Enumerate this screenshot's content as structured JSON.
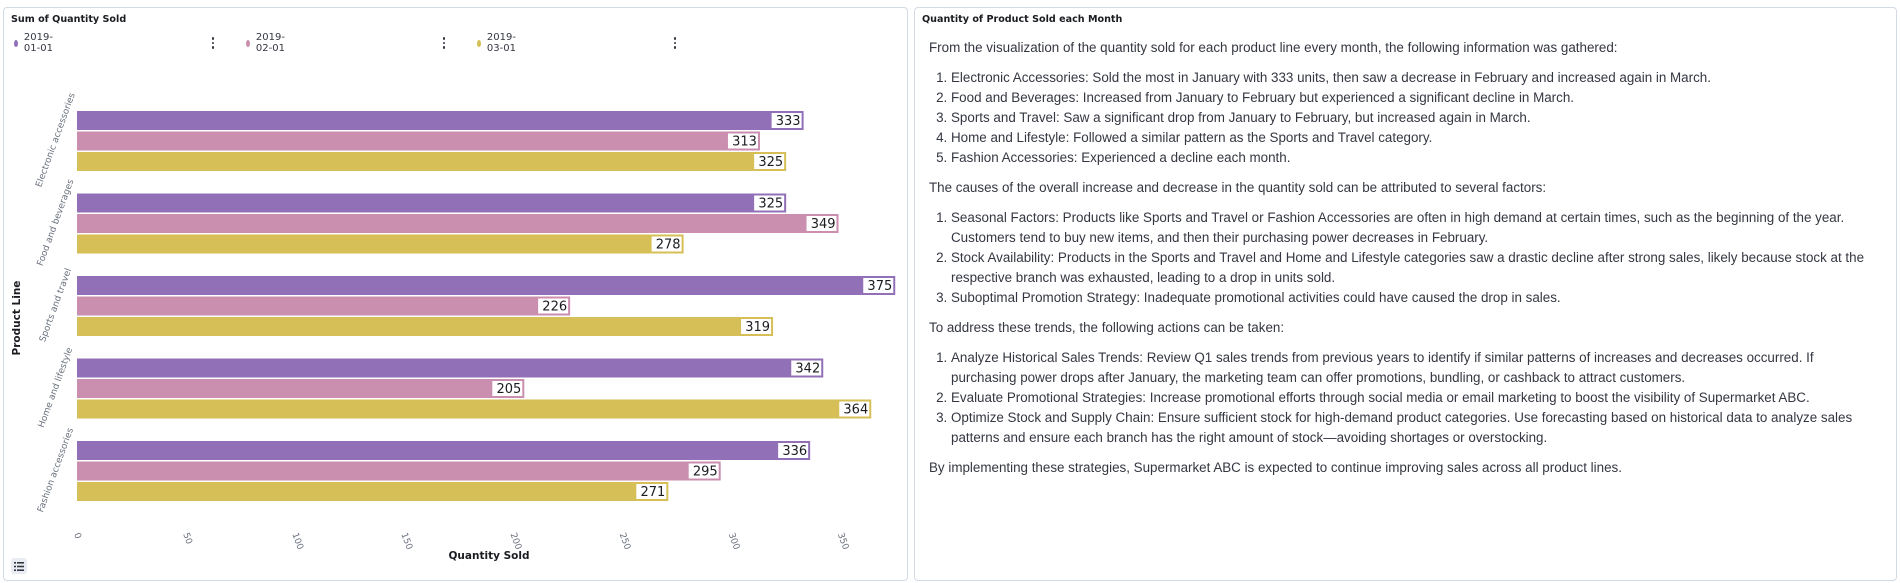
{
  "chart_panel": {
    "title": "Sum of Quantity Sold",
    "legend": [
      {
        "label": "2019-01-01",
        "color": "#9170b8"
      },
      {
        "label": "2019-02-01",
        "color": "#ca8eae"
      },
      {
        "label": "2019-03-01",
        "color": "#d6bf57"
      }
    ]
  },
  "chart_data": {
    "type": "bar",
    "orientation": "horizontal",
    "title": "",
    "ylabel": "Product Line",
    "xlabel": "Quantity Sold",
    "categories": [
      "Electronic accessories",
      "Food and beverages",
      "Sports and travel",
      "Home and lifestyle",
      "Fashion accessories"
    ],
    "series": [
      {
        "name": "2019-01-01",
        "color": "#9170b8",
        "values": [
          333,
          325,
          375,
          342,
          336
        ]
      },
      {
        "name": "2019-02-01",
        "color": "#ca8eae",
        "values": [
          313,
          349,
          226,
          205,
          295
        ]
      },
      {
        "name": "2019-03-01",
        "color": "#d6bf57",
        "values": [
          325,
          278,
          319,
          364,
          271
        ]
      }
    ],
    "xticks": [
      "0",
      "50",
      "100",
      "150",
      "200",
      "250",
      "300",
      "350"
    ],
    "xlim": [
      0,
      375
    ],
    "grid": false,
    "legend_position": "top"
  },
  "text_panel": {
    "title": "Quantity of Product Sold each Month",
    "intro": "From the visualization of the quantity sold for each product line every month, the following information was gathered:",
    "observations": [
      "Electronic Accessories: Sold the most in January with 333 units, then saw a decrease in February and increased again in March.",
      "Food and Beverages: Increased from January to February but experienced a significant decline in March.",
      "Sports and Travel: Saw a significant drop from January to February, but increased again in March.",
      "Home and Lifestyle: Followed a similar pattern as the Sports and Travel category.",
      "Fashion Accessories: Experienced a decline each month."
    ],
    "causes_intro": "The causes of the overall increase and decrease in the quantity sold can be attributed to several factors:",
    "causes": [
      "Seasonal Factors: Products like Sports and Travel or Fashion Accessories are often in high demand at certain times, such as the beginning of the year. Customers tend to buy new items, and then their purchasing power decreases in February.",
      "Stock Availability: Products in the Sports and Travel and Home and Lifestyle categories saw a drastic decline after strong sales, likely because stock at the respective branch was exhausted, leading to a drop in units sold.",
      "Suboptimal Promotion Strategy: Inadequate promotional activities could have caused the drop in sales."
    ],
    "actions_intro": "To address these trends, the following actions can be taken:",
    "actions": [
      "Analyze Historical Sales Trends: Review Q1 sales trends from previous years to identify if similar patterns of increases and decreases occurred. If purchasing power drops after January, the marketing team can offer promotions, bundling, or cashback to attract customers.",
      "Evaluate Promotional Strategies: Increase promotional efforts through social media or email marketing to boost the visibility of Supermarket ABC.",
      "Optimize Stock and Supply Chain: Ensure sufficient stock for high-demand product categories. Use forecasting based on historical data to analyze sales patterns and ensure each branch has the right amount of stock—avoiding shortages or overstocking."
    ],
    "conclusion": "By implementing these strategies, Supermarket ABC is expected to continue improving sales across all product lines."
  }
}
